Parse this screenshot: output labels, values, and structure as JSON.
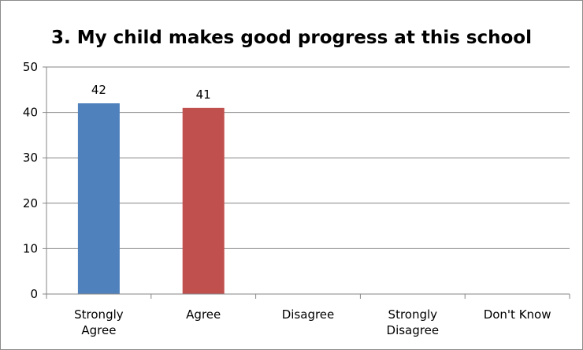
{
  "chart_data": {
    "type": "bar",
    "title": "3. My child makes good progress at this school",
    "categories": [
      [
        "Strongly",
        "Agree"
      ],
      [
        "Agree"
      ],
      [
        "Disagree"
      ],
      [
        "Strongly",
        "Disagree"
      ],
      [
        "Don't Know"
      ]
    ],
    "values": [
      42,
      41,
      null,
      null,
      null
    ],
    "data_labels": [
      "42",
      "41",
      "",
      "",
      ""
    ],
    "bar_colors": [
      "#4f81bd",
      "#c0504d",
      "#9bbb59",
      "#8064a2",
      "#4bacc6"
    ],
    "xlabel": "",
    "ylabel": "",
    "ylim": [
      0,
      50
    ],
    "yticks": [
      0,
      10,
      20,
      30,
      40,
      50
    ],
    "grid": true,
    "legend": "none"
  }
}
